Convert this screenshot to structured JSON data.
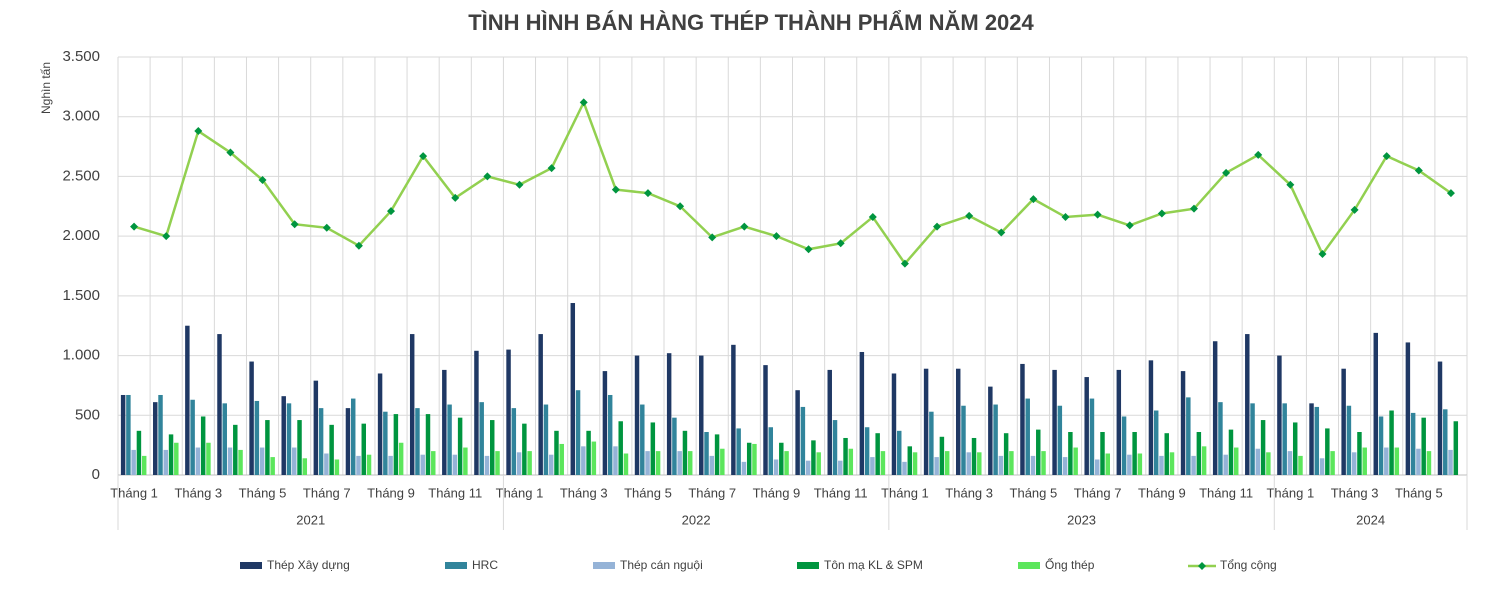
{
  "chart_data": {
    "type": "bar",
    "title": "TÌNH HÌNH BÁN HÀNG THÉP THÀNH PHẨM NĂM 2024",
    "y_label": "Nghìn tấn",
    "categories": [
      "Tháng 1",
      null,
      "Tháng 3",
      null,
      "Tháng 5",
      null,
      "Tháng 7",
      null,
      "Tháng 9",
      null,
      "Tháng 11",
      null,
      "Tháng 1",
      null,
      "Tháng 3",
      null,
      "Tháng 5",
      null,
      "Tháng 7",
      null,
      "Tháng 9",
      null,
      "Tháng 11",
      null,
      "Tháng 1",
      null,
      "Tháng 3",
      null,
      "Tháng 5",
      null,
      "Tháng 7",
      null,
      "Tháng 9",
      null,
      "Tháng 11",
      null,
      "Tháng 1",
      null,
      "Tháng 3",
      null,
      "Tháng 5",
      null
    ],
    "groups": [
      {
        "name": "2021",
        "size": 12
      },
      {
        "name": "2022",
        "size": 12
      },
      {
        "name": "2023",
        "size": 12
      },
      {
        "name": "2024",
        "size": 6
      }
    ],
    "ylim": [
      0,
      3500
    ],
    "yticks": [
      0,
      500,
      {
        "value": 1000,
        "label": "1.000"
      },
      {
        "value": 1500,
        "label": "1.500"
      },
      {
        "value": 2000,
        "label": "2.000"
      },
      {
        "value": 2500,
        "label": "2.500"
      },
      {
        "value": 3000,
        "label": "3.000"
      },
      {
        "value": 3500,
        "label": "3.500"
      }
    ],
    "grid": true,
    "legend": "bottom",
    "series": [
      {
        "name": "Thép Xây dựng",
        "type": "bar",
        "color": "#1f3864",
        "values": [
          670,
          610,
          1250,
          1180,
          950,
          660,
          790,
          560,
          850,
          1180,
          880,
          1040,
          1050,
          1180,
          1440,
          870,
          1000,
          1020,
          1000,
          1090,
          920,
          710,
          880,
          1030,
          850,
          890,
          890,
          740,
          930,
          880,
          820,
          880,
          960,
          870,
          1120,
          1180,
          1000,
          600,
          890,
          1190,
          1110,
          950
        ]
      },
      {
        "name": "HRC",
        "type": "bar",
        "color": "#31849b",
        "values": [
          670,
          670,
          630,
          600,
          620,
          600,
          560,
          640,
          530,
          560,
          590,
          610,
          560,
          590,
          710,
          670,
          590,
          480,
          360,
          390,
          400,
          570,
          460,
          400,
          370,
          530,
          580,
          590,
          640,
          580,
          640,
          490,
          540,
          650,
          610,
          600,
          600,
          570,
          580,
          490,
          520,
          550
        ]
      },
      {
        "name": "Thép cán nguội",
        "type": "bar",
        "color": "#95b3d7",
        "values": [
          210,
          210,
          230,
          230,
          230,
          230,
          180,
          160,
          160,
          170,
          170,
          160,
          190,
          170,
          240,
          240,
          200,
          200,
          160,
          110,
          130,
          120,
          120,
          150,
          110,
          150,
          190,
          160,
          160,
          150,
          130,
          170,
          160,
          160,
          170,
          220,
          200,
          140,
          190,
          230,
          220,
          210
        ]
      },
      {
        "name": "Tôn mạ KL & SPM",
        "type": "bar",
        "color": "#00953f",
        "values": [
          370,
          340,
          490,
          420,
          460,
          460,
          420,
          430,
          510,
          510,
          480,
          460,
          430,
          370,
          370,
          450,
          440,
          370,
          340,
          270,
          270,
          290,
          310,
          350,
          240,
          320,
          310,
          350,
          380,
          360,
          360,
          360,
          350,
          360,
          380,
          460,
          440,
          390,
          360,
          540,
          480,
          450
        ]
      },
      {
        "name": "Ống thép",
        "type": "bar",
        "color": "#5ce65c",
        "values": [
          160,
          270,
          270,
          210,
          150,
          140,
          130,
          170,
          270,
          200,
          230,
          200,
          200,
          260,
          280,
          180,
          200,
          200,
          220,
          260,
          200,
          190,
          220,
          200,
          190,
          200,
          190,
          200,
          200,
          230,
          180,
          180,
          190,
          240,
          230,
          190,
          160,
          200,
          230,
          230,
          200,
          null
        ]
      },
      {
        "name": "Tổng cộng",
        "type": "line",
        "color": "#92d050",
        "marker_color": "#00953f",
        "values": [
          2080,
          2000,
          2880,
          2700,
          2470,
          2100,
          2070,
          1920,
          2210,
          2670,
          2320,
          2500,
          2430,
          2570,
          3120,
          2390,
          2360,
          2250,
          1990,
          2080,
          2000,
          1890,
          1940,
          2160,
          1770,
          2080,
          2170,
          2030,
          2310,
          2160,
          2180,
          2090,
          2190,
          2230,
          2530,
          2680,
          2430,
          1850,
          2220,
          2670,
          2550,
          2360
        ]
      }
    ]
  }
}
